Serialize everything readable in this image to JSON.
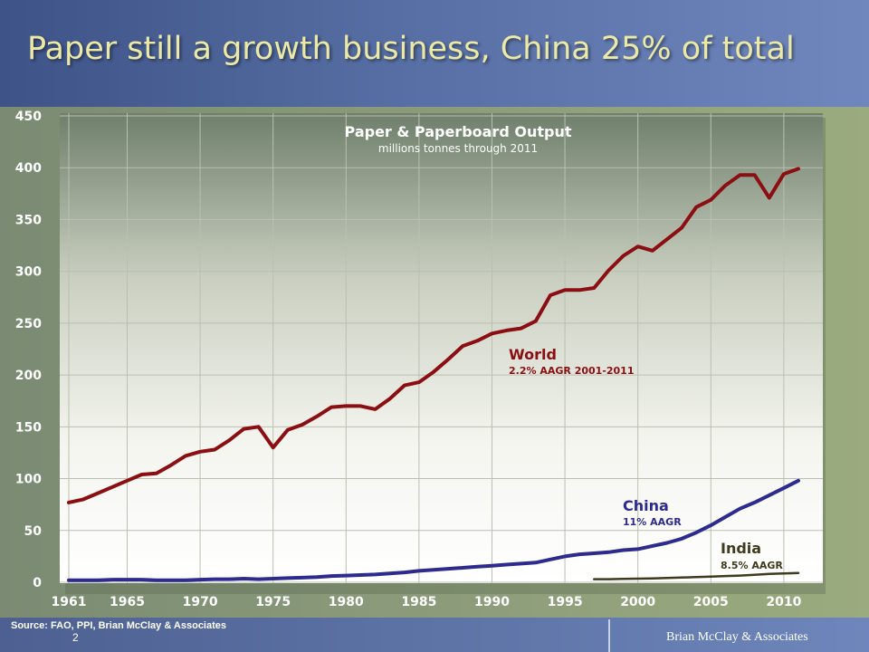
{
  "slide": {
    "title": "Paper still a growth business, China 25% of total",
    "source": "Source:  FAO, PPI,  Brian McClay & Associates",
    "page_number": "2",
    "brand": "Brian McClay & Associates"
  },
  "colors": {
    "world": "#8b0f12",
    "china": "#2e2b8f",
    "india": "#3e3a1e"
  },
  "chart_data": {
    "type": "line",
    "title": "Paper & Paperboard Output",
    "subtitle": "millions tonnes through 2011",
    "ylim": [
      0,
      450
    ],
    "xlim": [
      1961,
      2011
    ],
    "grid": true,
    "y_ticks": [
      0,
      50,
      100,
      150,
      200,
      250,
      300,
      350,
      400,
      450
    ],
    "x_ticks": [
      1961,
      1965,
      1970,
      1975,
      1980,
      1985,
      1990,
      1995,
      2000,
      2005,
      2010
    ],
    "series": [
      {
        "name": "World",
        "annotation": "2.2% AAGR 2001-2011",
        "x": [
          1961,
          1962,
          1963,
          1964,
          1965,
          1966,
          1967,
          1968,
          1969,
          1970,
          1971,
          1972,
          1973,
          1974,
          1975,
          1976,
          1977,
          1978,
          1979,
          1980,
          1981,
          1982,
          1983,
          1984,
          1985,
          1986,
          1987,
          1988,
          1989,
          1990,
          1991,
          1992,
          1993,
          1994,
          1995,
          1996,
          1997,
          1998,
          1999,
          2000,
          2001,
          2002,
          2003,
          2004,
          2005,
          2006,
          2007,
          2008,
          2009,
          2010,
          2011
        ],
        "values": [
          77,
          80,
          86,
          92,
          98,
          104,
          105,
          113,
          122,
          126,
          128,
          137,
          148,
          150,
          130,
          147,
          152,
          160,
          169,
          170,
          170,
          167,
          177,
          190,
          193,
          203,
          215,
          228,
          233,
          240,
          243,
          245,
          252,
          277,
          282,
          282,
          284,
          301,
          315,
          324,
          320,
          331,
          342,
          362,
          369,
          383,
          393,
          393,
          371,
          394,
          399
        ]
      },
      {
        "name": "China",
        "annotation": "11% AAGR",
        "x": [
          1961,
          1962,
          1963,
          1964,
          1965,
          1966,
          1967,
          1968,
          1969,
          1970,
          1971,
          1972,
          1973,
          1974,
          1975,
          1976,
          1977,
          1978,
          1979,
          1980,
          1981,
          1982,
          1983,
          1984,
          1985,
          1986,
          1987,
          1988,
          1989,
          1990,
          1991,
          1992,
          1993,
          1994,
          1995,
          1996,
          1997,
          1998,
          1999,
          2000,
          2001,
          2002,
          2003,
          2004,
          2005,
          2006,
          2007,
          2008,
          2009,
          2010,
          2011
        ],
        "values": [
          2,
          2,
          2,
          2.5,
          2.5,
          2.5,
          2,
          2,
          2,
          2.5,
          3,
          3,
          3.5,
          3,
          3.5,
          4,
          4.5,
          5,
          6,
          6.5,
          7,
          7.5,
          8.5,
          9.5,
          11,
          12,
          13,
          14,
          15,
          16,
          17,
          18,
          19,
          22,
          25,
          27,
          28,
          29,
          31,
          32,
          35,
          38,
          42,
          48,
          55,
          63,
          71,
          77,
          84,
          91,
          98
        ]
      },
      {
        "name": "India",
        "annotation": "8.5% AAGR",
        "x": [
          1997,
          1998,
          1999,
          2000,
          2001,
          2002,
          2003,
          2004,
          2005,
          2006,
          2007,
          2008,
          2009,
          2010,
          2011
        ],
        "values": [
          3,
          3,
          3.2,
          3.5,
          3.8,
          4.2,
          4.6,
          5,
          5.5,
          6,
          6.5,
          7.2,
          8,
          8.6,
          9
        ]
      }
    ]
  }
}
